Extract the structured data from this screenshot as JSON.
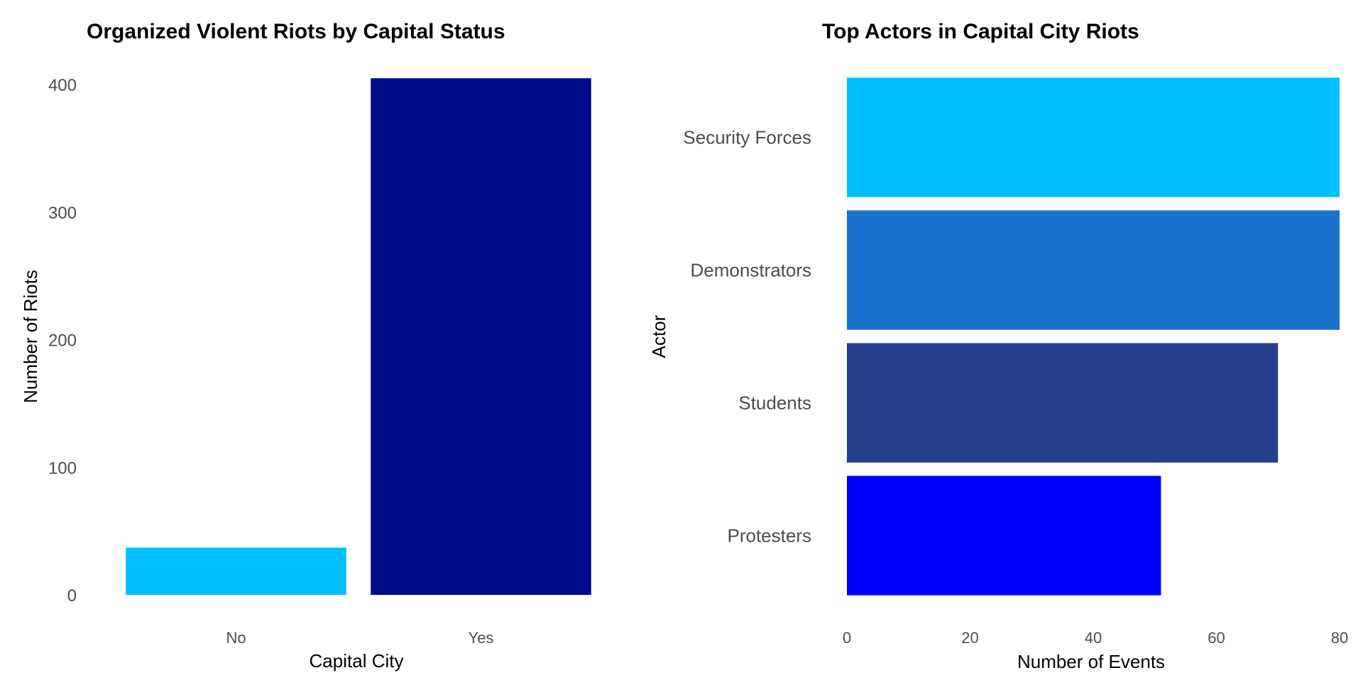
{
  "chart_data": [
    {
      "type": "bar",
      "orientation": "vertical",
      "title": "Organized Violent Riots by Capital Status",
      "xlabel": "Capital City",
      "ylabel": "Number of Riots",
      "categories": [
        "No",
        "Yes"
      ],
      "values": [
        37,
        405
      ],
      "colors": [
        "#00BFFF",
        "#000B8B"
      ],
      "ylim": [
        0,
        420
      ],
      "yticks": [
        0,
        100,
        200,
        300,
        400
      ],
      "grid": false
    },
    {
      "type": "bar",
      "orientation": "horizontal",
      "title": "Top Actors in Capital City Riots",
      "xlabel": "Number of Events",
      "ylabel": "Actor",
      "categories": [
        "Security Forces",
        "Demonstrators",
        "Students",
        "Protesters"
      ],
      "values": [
        80,
        80,
        70,
        51
      ],
      "colors": [
        "#00BFFF",
        "#1A73CC",
        "#253F8C",
        "#0000FF"
      ],
      "xlim": [
        0,
        80
      ],
      "xticks": [
        0,
        20,
        40,
        60,
        80
      ],
      "grid": false
    }
  ]
}
